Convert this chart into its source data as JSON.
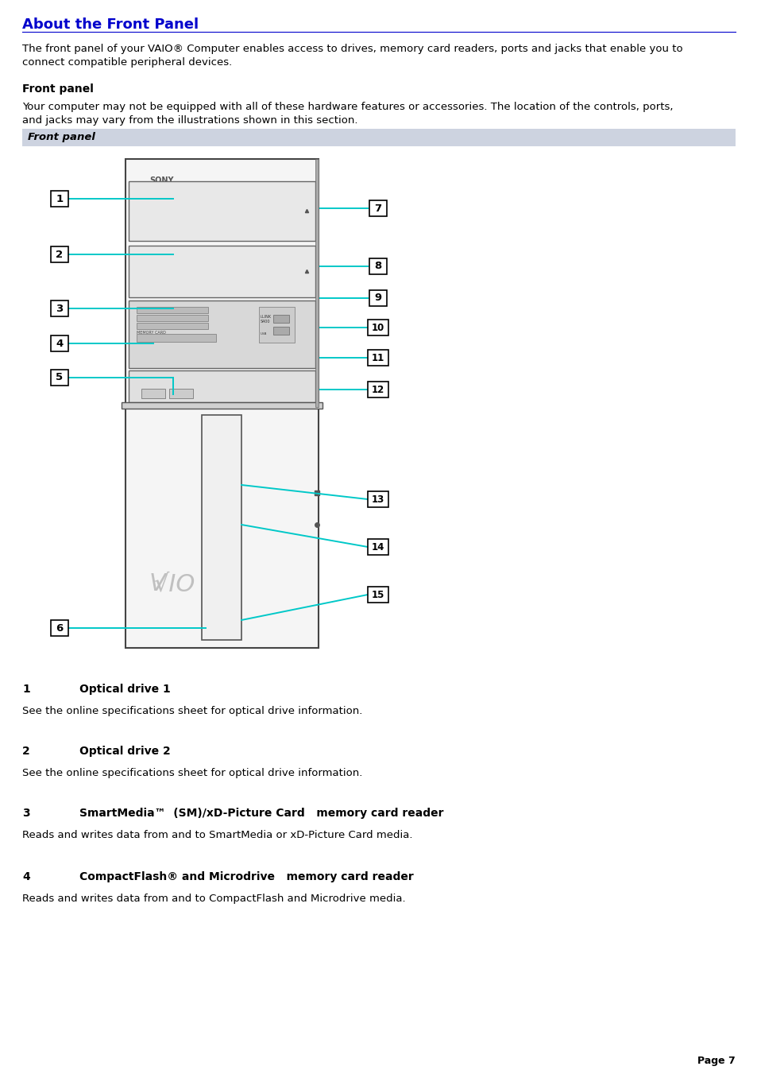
{
  "title": "About the Front Panel",
  "title_color": "#0000cc",
  "page_bg": "#ffffff",
  "intro_text1": "The front panel of your VAIO® Computer enables access to drives, memory card readers, ports and jacks that enable you to",
  "intro_text2": "connect compatible peripheral devices.",
  "section_title": "Front panel",
  "section_bg": "#cdd3e0",
  "para_text1": "Your computer may not be equipped with all of these hardware features or accessories. The location of the controls, ports,",
  "para_text2": "and jacks may vary from the illustrations shown in this section.",
  "items": [
    {
      "num": "1",
      "bold": "Optical drive 1",
      "desc": "See the online specifications sheet for optical drive information."
    },
    {
      "num": "2",
      "bold": "Optical drive 2",
      "desc": "See the online specifications sheet for optical drive information."
    },
    {
      "num": "3",
      "bold": "SmartMedia™ (SM)/xD-Picture Card   memory card reader",
      "desc": "Reads and writes data from and to SmartMedia or xD-Picture Card media."
    },
    {
      "num": "4",
      "bold": "CompactFlash® and Microdrive   memory card reader",
      "desc": "Reads and writes data from and to CompactFlash and Microdrive media."
    }
  ],
  "page_num": "Page 7",
  "line_color": "#0000cc",
  "cc": "#00c8c8",
  "clw": 1.4
}
